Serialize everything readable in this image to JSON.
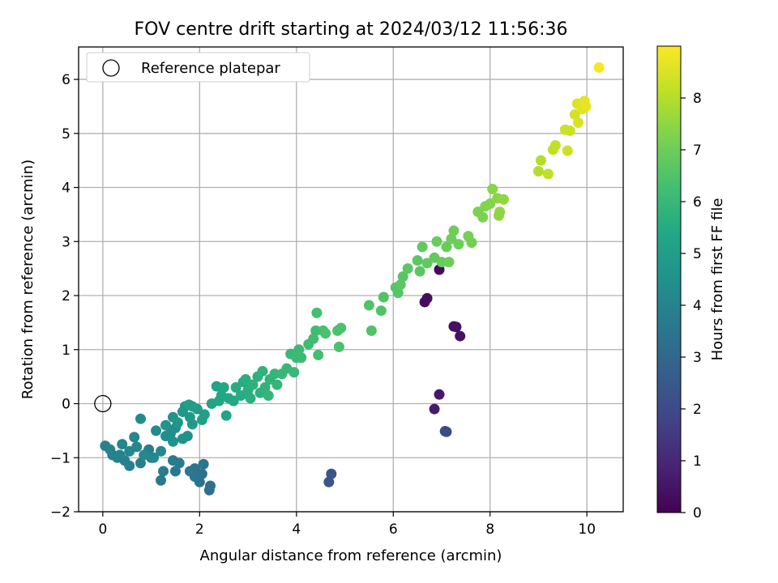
{
  "chart_data": {
    "type": "scatter",
    "title": "FOV centre drift starting at 2024/03/12 11:56:36",
    "xlabel": "Angular distance from reference (arcmin)",
    "ylabel": "Rotation from reference (arcmin)",
    "xlim": [
      -0.5,
      10.75
    ],
    "ylim": [
      -2.0,
      6.6
    ],
    "xticks": [
      0,
      2,
      4,
      6,
      8,
      10
    ],
    "yticks": [
      -2,
      -1,
      0,
      1,
      2,
      3,
      4,
      5,
      6
    ],
    "grid": true,
    "legend": {
      "placement": "top-left",
      "entries": [
        "Reference platepar"
      ]
    },
    "reference_point": {
      "x": 0,
      "y": 0
    },
    "colorbar": {
      "label": "Hours from first FF file",
      "colormap": "viridis",
      "range": [
        0,
        9
      ],
      "ticks": [
        0,
        1,
        2,
        3,
        4,
        5,
        6,
        7,
        8
      ]
    },
    "series": [
      {
        "points": [
          {
            "x": 6.95,
            "y": 2.48,
            "c": 0.2
          },
          {
            "x": 6.65,
            "y": 1.88,
            "c": 0.3
          },
          {
            "x": 6.7,
            "y": 1.95,
            "c": 0.3
          },
          {
            "x": 7.25,
            "y": 1.43,
            "c": 0.4
          },
          {
            "x": 7.3,
            "y": 1.42,
            "c": 0.4
          },
          {
            "x": 7.38,
            "y": 1.25,
            "c": 0.4
          },
          {
            "x": 6.95,
            "y": 0.17,
            "c": 0.6
          },
          {
            "x": 6.85,
            "y": -0.1,
            "c": 0.7
          },
          {
            "x": 7.07,
            "y": -0.51,
            "c": 1.9
          },
          {
            "x": 7.1,
            "y": -0.52,
            "c": 2.0
          },
          {
            "x": 4.72,
            "y": -1.3,
            "c": 2.3
          },
          {
            "x": 4.67,
            "y": -1.45,
            "c": 2.4
          },
          {
            "x": 2.2,
            "y": -1.6,
            "c": 3.3
          },
          {
            "x": 2.22,
            "y": -1.52,
            "c": 3.3
          },
          {
            "x": 2.05,
            "y": -1.3,
            "c": 3.4
          },
          {
            "x": 2.0,
            "y": -1.45,
            "c": 3.4
          },
          {
            "x": 1.9,
            "y": -1.35,
            "c": 3.5
          },
          {
            "x": 1.9,
            "y": -1.2,
            "c": 3.5
          },
          {
            "x": 2.08,
            "y": -1.12,
            "c": 3.5
          },
          {
            "x": 1.8,
            "y": -1.25,
            "c": 3.6
          },
          {
            "x": 1.5,
            "y": -1.25,
            "c": 3.6
          },
          {
            "x": 1.2,
            "y": -1.42,
            "c": 3.6
          },
          {
            "x": 1.25,
            "y": -1.25,
            "c": 3.7
          },
          {
            "x": 1.45,
            "y": -1.05,
            "c": 3.7
          },
          {
            "x": 1.58,
            "y": -1.1,
            "c": 3.7
          },
          {
            "x": 1.0,
            "y": -1.0,
            "c": 3.8
          },
          {
            "x": 0.95,
            "y": -0.85,
            "c": 3.8
          },
          {
            "x": 0.78,
            "y": -1.1,
            "c": 3.8
          },
          {
            "x": 0.55,
            "y": -1.15,
            "c": 3.9
          },
          {
            "x": 0.45,
            "y": -1.05,
            "c": 3.9
          },
          {
            "x": 0.35,
            "y": -0.95,
            "c": 3.9
          },
          {
            "x": 0.2,
            "y": -0.95,
            "c": 4.0
          },
          {
            "x": 0.05,
            "y": -0.78,
            "c": 4.0
          },
          {
            "x": 0.15,
            "y": -0.85,
            "c": 4.0
          },
          {
            "x": 0.3,
            "y": -1.0,
            "c": 4.0
          },
          {
            "x": 0.4,
            "y": -0.75,
            "c": 4.1
          },
          {
            "x": 0.55,
            "y": -0.88,
            "c": 4.1
          },
          {
            "x": 0.65,
            "y": -0.62,
            "c": 4.1
          },
          {
            "x": 0.7,
            "y": -0.8,
            "c": 4.1
          },
          {
            "x": 0.85,
            "y": -0.95,
            "c": 4.2
          },
          {
            "x": 1.05,
            "y": -1.0,
            "c": 4.2
          },
          {
            "x": 1.2,
            "y": -0.88,
            "c": 4.2
          },
          {
            "x": 1.1,
            "y": -0.5,
            "c": 4.3
          },
          {
            "x": 0.78,
            "y": -0.28,
            "c": 4.3
          },
          {
            "x": 1.3,
            "y": -0.6,
            "c": 4.4
          },
          {
            "x": 1.4,
            "y": -0.55,
            "c": 4.4
          },
          {
            "x": 1.5,
            "y": -0.45,
            "c": 4.4
          },
          {
            "x": 1.45,
            "y": -0.7,
            "c": 4.5
          },
          {
            "x": 1.65,
            "y": -0.65,
            "c": 4.5
          },
          {
            "x": 1.75,
            "y": -0.6,
            "c": 4.5
          },
          {
            "x": 1.3,
            "y": -0.4,
            "c": 4.6
          },
          {
            "x": 1.45,
            "y": -0.25,
            "c": 4.6
          },
          {
            "x": 1.55,
            "y": -0.35,
            "c": 4.7
          },
          {
            "x": 1.65,
            "y": -0.15,
            "c": 4.7
          },
          {
            "x": 1.7,
            "y": -0.05,
            "c": 4.8
          },
          {
            "x": 1.8,
            "y": -0.25,
            "c": 4.8
          },
          {
            "x": 1.85,
            "y": -0.38,
            "c": 4.9
          },
          {
            "x": 1.95,
            "y": -0.1,
            "c": 4.9
          },
          {
            "x": 1.78,
            "y": -0.02,
            "c": 5.0
          },
          {
            "x": 1.85,
            "y": -0.05,
            "c": 5.0
          },
          {
            "x": 2.1,
            "y": -0.2,
            "c": 5.1
          },
          {
            "x": 2.05,
            "y": -0.3,
            "c": 5.1
          },
          {
            "x": 2.25,
            "y": 0.0,
            "c": 5.2
          },
          {
            "x": 2.35,
            "y": 0.32,
            "c": 5.2
          },
          {
            "x": 2.45,
            "y": 0.15,
            "c": 5.3
          },
          {
            "x": 2.4,
            "y": 0.05,
            "c": 5.3
          },
          {
            "x": 2.55,
            "y": -0.22,
            "c": 5.3
          },
          {
            "x": 2.6,
            "y": 0.1,
            "c": 5.4
          },
          {
            "x": 2.7,
            "y": 0.05,
            "c": 5.4
          },
          {
            "x": 2.5,
            "y": 0.3,
            "c": 5.4
          },
          {
            "x": 2.75,
            "y": 0.3,
            "c": 5.5
          },
          {
            "x": 2.85,
            "y": 0.15,
            "c": 5.5
          },
          {
            "x": 2.9,
            "y": 0.4,
            "c": 5.5
          },
          {
            "x": 3.0,
            "y": 0.25,
            "c": 5.6
          },
          {
            "x": 2.95,
            "y": 0.45,
            "c": 5.6
          },
          {
            "x": 3.05,
            "y": 0.1,
            "c": 5.6
          },
          {
            "x": 3.1,
            "y": 0.35,
            "c": 5.7
          },
          {
            "x": 3.2,
            "y": 0.5,
            "c": 5.7
          },
          {
            "x": 3.25,
            "y": 0.2,
            "c": 5.7
          },
          {
            "x": 3.3,
            "y": 0.6,
            "c": 5.8
          },
          {
            "x": 3.35,
            "y": 0.3,
            "c": 5.8
          },
          {
            "x": 3.45,
            "y": 0.45,
            "c": 5.8
          },
          {
            "x": 3.55,
            "y": 0.55,
            "c": 5.9
          },
          {
            "x": 3.42,
            "y": 0.15,
            "c": 5.9
          },
          {
            "x": 3.6,
            "y": 0.35,
            "c": 5.9
          },
          {
            "x": 3.7,
            "y": 0.55,
            "c": 6.0
          },
          {
            "x": 3.8,
            "y": 0.65,
            "c": 6.0
          },
          {
            "x": 3.88,
            "y": 0.92,
            "c": 6.0
          },
          {
            "x": 3.95,
            "y": 0.58,
            "c": 6.0
          },
          {
            "x": 4.0,
            "y": 0.85,
            "c": 6.1
          },
          {
            "x": 4.05,
            "y": 1.0,
            "c": 6.1
          },
          {
            "x": 4.1,
            "y": 0.85,
            "c": 6.1
          },
          {
            "x": 4.25,
            "y": 1.1,
            "c": 6.2
          },
          {
            "x": 4.35,
            "y": 1.2,
            "c": 6.2
          },
          {
            "x": 4.4,
            "y": 1.35,
            "c": 6.2
          },
          {
            "x": 4.45,
            "y": 0.9,
            "c": 6.3
          },
          {
            "x": 4.42,
            "y": 1.68,
            "c": 6.3
          },
          {
            "x": 4.55,
            "y": 1.35,
            "c": 6.3
          },
          {
            "x": 4.6,
            "y": 1.3,
            "c": 6.4
          },
          {
            "x": 4.85,
            "y": 1.35,
            "c": 6.4
          },
          {
            "x": 4.88,
            "y": 1.05,
            "c": 6.4
          },
          {
            "x": 4.92,
            "y": 1.4,
            "c": 6.4
          },
          {
            "x": 5.5,
            "y": 1.82,
            "c": 6.5
          },
          {
            "x": 5.55,
            "y": 1.35,
            "c": 6.5
          },
          {
            "x": 5.75,
            "y": 1.72,
            "c": 6.5
          },
          {
            "x": 5.8,
            "y": 1.97,
            "c": 6.5
          },
          {
            "x": 6.05,
            "y": 2.15,
            "c": 6.6
          },
          {
            "x": 6.1,
            "y": 2.05,
            "c": 6.6
          },
          {
            "x": 6.2,
            "y": 2.35,
            "c": 6.6
          },
          {
            "x": 6.3,
            "y": 2.5,
            "c": 6.7
          },
          {
            "x": 6.15,
            "y": 2.2,
            "c": 6.7
          },
          {
            "x": 6.5,
            "y": 2.65,
            "c": 6.7
          },
          {
            "x": 6.55,
            "y": 2.45,
            "c": 6.7
          },
          {
            "x": 6.6,
            "y": 2.9,
            "c": 6.8
          },
          {
            "x": 6.7,
            "y": 2.6,
            "c": 6.8
          },
          {
            "x": 6.85,
            "y": 2.7,
            "c": 6.8
          },
          {
            "x": 6.9,
            "y": 3.0,
            "c": 6.9
          },
          {
            "x": 7.0,
            "y": 2.62,
            "c": 6.9
          },
          {
            "x": 7.1,
            "y": 2.9,
            "c": 6.9
          },
          {
            "x": 7.2,
            "y": 3.05,
            "c": 7.0
          },
          {
            "x": 7.25,
            "y": 3.2,
            "c": 7.0
          },
          {
            "x": 7.35,
            "y": 2.95,
            "c": 7.0
          },
          {
            "x": 7.15,
            "y": 2.62,
            "c": 7.0
          },
          {
            "x": 7.55,
            "y": 3.1,
            "c": 7.1
          },
          {
            "x": 7.62,
            "y": 2.98,
            "c": 7.1
          },
          {
            "x": 7.75,
            "y": 3.55,
            "c": 7.2
          },
          {
            "x": 7.85,
            "y": 3.45,
            "c": 7.2
          },
          {
            "x": 7.9,
            "y": 3.65,
            "c": 7.3
          },
          {
            "x": 8.0,
            "y": 3.7,
            "c": 7.3
          },
          {
            "x": 8.05,
            "y": 3.97,
            "c": 7.4
          },
          {
            "x": 8.15,
            "y": 3.8,
            "c": 7.4
          },
          {
            "x": 8.2,
            "y": 3.55,
            "c": 7.5
          },
          {
            "x": 8.28,
            "y": 3.78,
            "c": 7.5
          },
          {
            "x": 8.18,
            "y": 3.48,
            "c": 7.5
          },
          {
            "x": 9.0,
            "y": 4.3,
            "c": 8.0
          },
          {
            "x": 9.05,
            "y": 4.5,
            "c": 8.0
          },
          {
            "x": 9.2,
            "y": 4.25,
            "c": 8.1
          },
          {
            "x": 9.3,
            "y": 4.7,
            "c": 8.1
          },
          {
            "x": 9.35,
            "y": 4.78,
            "c": 8.2
          },
          {
            "x": 9.55,
            "y": 5.07,
            "c": 8.3
          },
          {
            "x": 9.6,
            "y": 4.68,
            "c": 8.3
          },
          {
            "x": 9.65,
            "y": 5.05,
            "c": 8.3
          },
          {
            "x": 9.75,
            "y": 5.35,
            "c": 8.4
          },
          {
            "x": 9.8,
            "y": 5.55,
            "c": 8.5
          },
          {
            "x": 9.82,
            "y": 5.2,
            "c": 8.5
          },
          {
            "x": 9.88,
            "y": 5.55,
            "c": 8.6
          },
          {
            "x": 9.9,
            "y": 5.45,
            "c": 8.6
          },
          {
            "x": 9.95,
            "y": 5.6,
            "c": 8.7
          },
          {
            "x": 9.98,
            "y": 5.5,
            "c": 8.7
          },
          {
            "x": 10.25,
            "y": 6.22,
            "c": 8.9
          }
        ]
      }
    ]
  }
}
